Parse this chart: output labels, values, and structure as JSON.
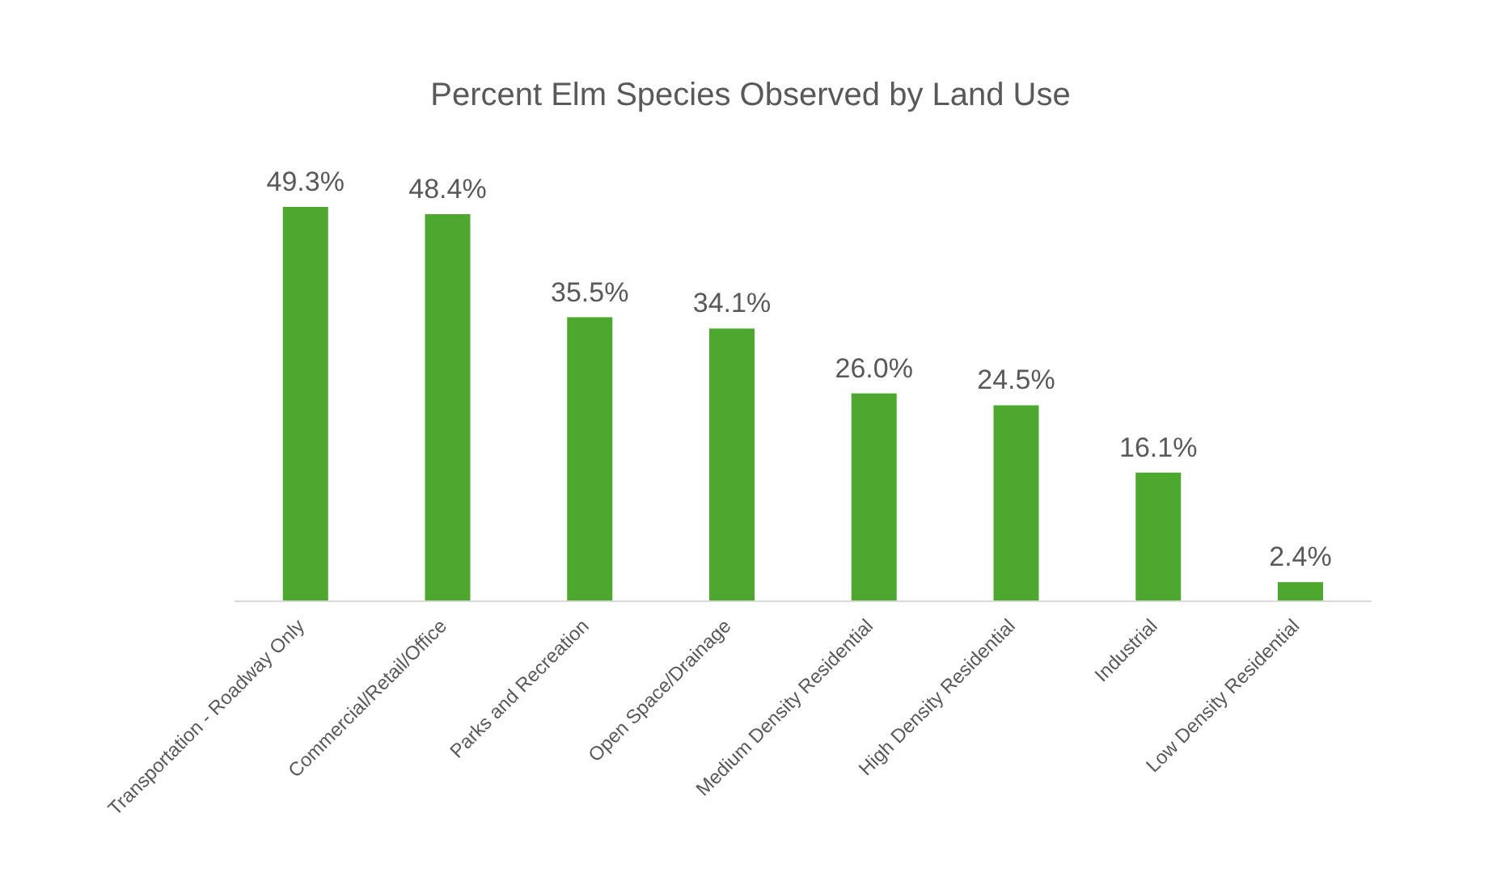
{
  "chart_data": {
    "type": "bar",
    "title": "Percent Elm Species Observed by Land Use",
    "categories": [
      "Transportation - Roadway Only",
      "Commercial/Retail/Office",
      "Parks and Recreation",
      "Open Space/Drainage",
      "Medium Density Residential",
      "High Density Residential",
      "Industrial",
      "Low Density Residential"
    ],
    "values": [
      49.3,
      48.4,
      35.5,
      34.1,
      26.0,
      24.5,
      16.1,
      2.4
    ],
    "value_labels": [
      "49.3%",
      "48.4%",
      "35.5%",
      "34.1%",
      "26.0%",
      "24.5%",
      "16.1%",
      "2.4%"
    ],
    "color": "#4ea72e",
    "grid": false,
    "legend": false
  }
}
